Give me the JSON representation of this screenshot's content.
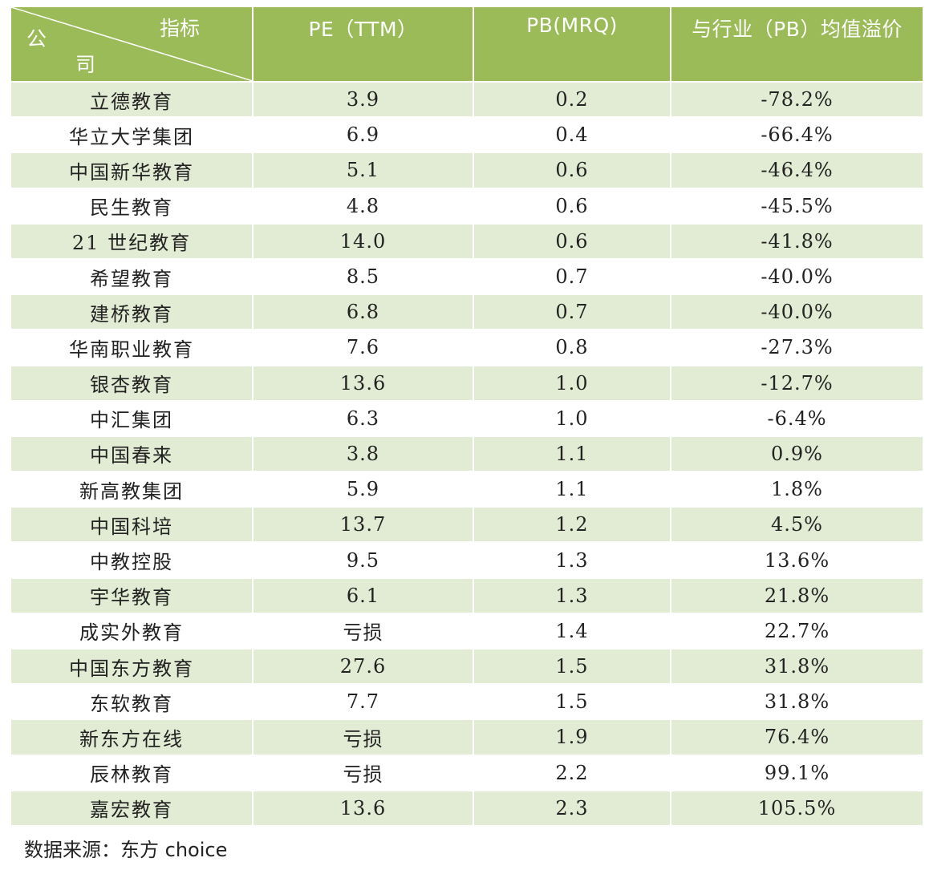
{
  "table": {
    "corner": {
      "column_label": "指标",
      "row_label_line1": "公",
      "row_label_line2": "司"
    },
    "columns": [
      "PE（TTM）",
      "PB(MRQ)",
      "与行业（PB）均值溢价"
    ],
    "rows": [
      {
        "company": "立德教育",
        "pe": "3.9",
        "pb": "0.2",
        "premium": "-78.2%"
      },
      {
        "company": "华立大学集团",
        "pe": "6.9",
        "pb": "0.4",
        "premium": "-66.4%"
      },
      {
        "company": "中国新华教育",
        "pe": "5.1",
        "pb": "0.6",
        "premium": "-46.4%"
      },
      {
        "company": "民生教育",
        "pe": "4.8",
        "pb": "0.6",
        "premium": "-45.5%"
      },
      {
        "company": "21 世纪教育",
        "pe": "14.0",
        "pb": "0.6",
        "premium": "-41.8%"
      },
      {
        "company": "希望教育",
        "pe": "8.5",
        "pb": "0.7",
        "premium": "-40.0%"
      },
      {
        "company": "建桥教育",
        "pe": "6.8",
        "pb": "0.7",
        "premium": "-40.0%"
      },
      {
        "company": "华南职业教育",
        "pe": "7.6",
        "pb": "0.8",
        "premium": "-27.3%"
      },
      {
        "company": "银杏教育",
        "pe": "13.6",
        "pb": "1.0",
        "premium": "-12.7%"
      },
      {
        "company": "中汇集团",
        "pe": "6.3",
        "pb": "1.0",
        "premium": "-6.4%"
      },
      {
        "company": "中国春来",
        "pe": "3.8",
        "pb": "1.1",
        "premium": "0.9%"
      },
      {
        "company": "新高教集团",
        "pe": "5.9",
        "pb": "1.1",
        "premium": "1.8%"
      },
      {
        "company": "中国科培",
        "pe": "13.7",
        "pb": "1.2",
        "premium": "4.5%"
      },
      {
        "company": "中教控股",
        "pe": "9.5",
        "pb": "1.3",
        "premium": "13.6%"
      },
      {
        "company": "宇华教育",
        "pe": "6.1",
        "pb": "1.3",
        "premium": "21.8%"
      },
      {
        "company": "成实外教育",
        "pe": "亏损",
        "pb": "1.4",
        "premium": "22.7%"
      },
      {
        "company": "中国东方教育",
        "pe": "27.6",
        "pb": "1.5",
        "premium": "31.8%"
      },
      {
        "company": "东软教育",
        "pe": "7.7",
        "pb": "1.5",
        "premium": "31.8%"
      },
      {
        "company": "新东方在线",
        "pe": "亏损",
        "pb": "1.9",
        "premium": "76.4%"
      },
      {
        "company": "辰林教育",
        "pe": "亏损",
        "pb": "2.2",
        "premium": "99.1%"
      },
      {
        "company": "嘉宏教育",
        "pe": "13.6",
        "pb": "2.3",
        "premium": "105.5%"
      }
    ]
  },
  "source_note": "数据来源：东方 choice",
  "colors": {
    "header_bg": "#9bbb59",
    "stripe_bg": "#e2ebd3",
    "text": "#222222"
  }
}
